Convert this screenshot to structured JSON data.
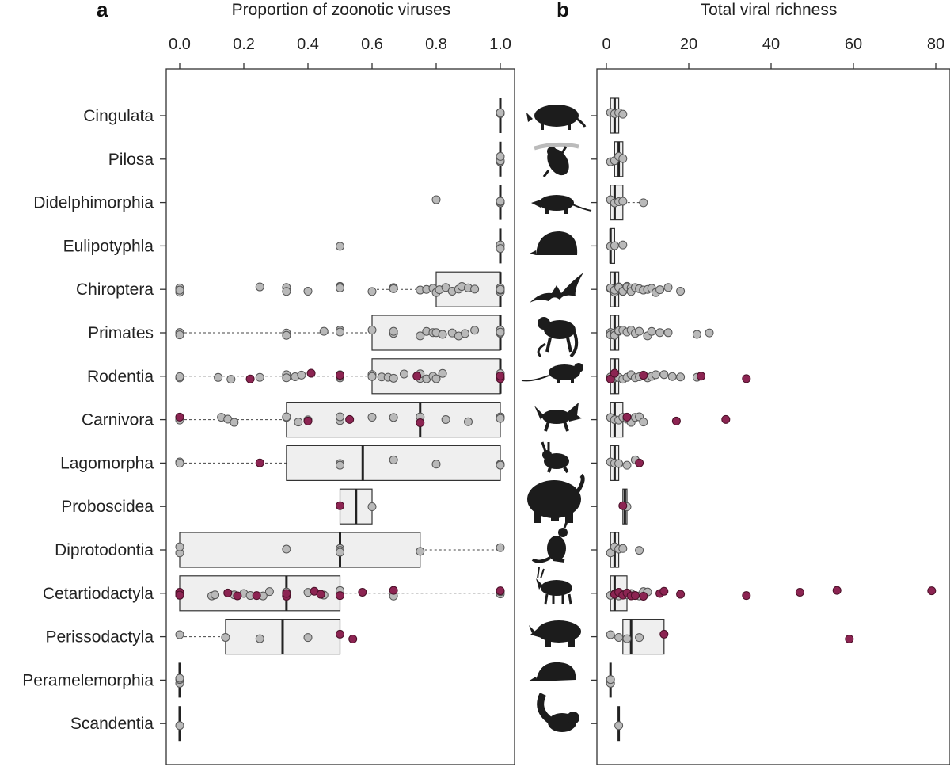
{
  "colors": {
    "point_grey": "#b9b9b9",
    "point_red": "#8c2452",
    "box_fill": "#efefef",
    "silhouette": "#1c1c1c"
  },
  "chart_data": [
    {
      "panel": "a",
      "type": "boxplot",
      "title": "Proportion of zoonotic viruses",
      "xlabel": "Proportion of zoonotic viruses",
      "xlim": [
        0,
        1
      ],
      "xticks": [
        0.0,
        0.2,
        0.4,
        0.6,
        0.8,
        1.0
      ],
      "xtick_labels": [
        "0.0",
        "0.2",
        "0.4",
        "0.6",
        "0.8",
        "1.0"
      ],
      "categories": [
        "Cingulata",
        "Pilosa",
        "Didelphimorphia",
        "Eulipotyphla",
        "Chiroptera",
        "Primates",
        "Rodentia",
        "Carnivora",
        "Lagomorpha",
        "Proboscidea",
        "Diprotodontia",
        "Cetartiodactyla",
        "Perissodactyla",
        "Peramelemorphia",
        "Scandentia"
      ],
      "boxes": [
        {
          "q1": 1.0,
          "median": 1.0,
          "q3": 1.0,
          "lo": 1.0,
          "hi": 1.0
        },
        {
          "q1": 1.0,
          "median": 1.0,
          "q3": 1.0,
          "lo": 1.0,
          "hi": 1.0
        },
        {
          "q1": 1.0,
          "median": 1.0,
          "q3": 1.0,
          "lo": 1.0,
          "hi": 1.0
        },
        {
          "q1": 1.0,
          "median": 1.0,
          "q3": 1.0,
          "lo": 1.0,
          "hi": 1.0
        },
        {
          "q1": 0.8,
          "median": 1.0,
          "q3": 1.0,
          "lo": 0.6,
          "hi": 1.0
        },
        {
          "q1": 0.6,
          "median": 1.0,
          "q3": 1.0,
          "lo": 0.0,
          "hi": 1.0
        },
        {
          "q1": 0.6,
          "median": 1.0,
          "q3": 1.0,
          "lo": 0.0,
          "hi": 1.0
        },
        {
          "q1": 0.333,
          "median": 0.75,
          "q3": 1.0,
          "lo": 0.0,
          "hi": 1.0
        },
        {
          "q1": 0.333,
          "median": 0.571,
          "q3": 1.0,
          "lo": 0.0,
          "hi": 1.0
        },
        {
          "q1": 0.5,
          "median": 0.55,
          "q3": 0.6,
          "lo": 0.5,
          "hi": 0.6
        },
        {
          "q1": 0.0,
          "median": 0.5,
          "q3": 0.75,
          "lo": 0.0,
          "hi": 1.0
        },
        {
          "q1": 0.0,
          "median": 0.333,
          "q3": 0.5,
          "lo": 0.0,
          "hi": 1.0
        },
        {
          "q1": 0.143,
          "median": 0.321,
          "q3": 0.5,
          "lo": 0.0,
          "hi": 0.5
        },
        {
          "q1": 0.0,
          "median": 0.0,
          "q3": 0.0,
          "lo": 0.0,
          "hi": 0.0
        },
        {
          "q1": 0.0,
          "median": 0.0,
          "q3": 0.0,
          "lo": 0.0,
          "hi": 0.0
        }
      ],
      "points_grey": [
        [
          1.0,
          1.0,
          1.0
        ],
        [
          1.0,
          1.0,
          1.0
        ],
        [
          0.8,
          1.0,
          1.0,
          1.0
        ],
        [
          0.5,
          1.0,
          1.0,
          1.0
        ],
        [
          0.0,
          0.0,
          0.0,
          0.0,
          0.25,
          0.333,
          0.333,
          0.4,
          0.5,
          0.5,
          0.5,
          0.6,
          0.667,
          0.667,
          0.75,
          0.77,
          0.79,
          0.8,
          0.81,
          0.83,
          0.85,
          0.87,
          0.88,
          0.9,
          0.92,
          1.0,
          1.0,
          1.0,
          1.0
        ],
        [
          0.0,
          0.0,
          0.333,
          0.333,
          0.45,
          0.5,
          0.5,
          0.5,
          0.6,
          0.667,
          0.667,
          0.75,
          0.77,
          0.79,
          0.8,
          0.82,
          0.85,
          0.87,
          0.89,
          0.92,
          1.0,
          1.0,
          1.0,
          1.0
        ],
        [
          0.0,
          0.0,
          0.0,
          0.12,
          0.16,
          0.25,
          0.333,
          0.333,
          0.36,
          0.38,
          0.5,
          0.5,
          0.5,
          0.6,
          0.6,
          0.63,
          0.65,
          0.667,
          0.7,
          0.75,
          0.75,
          0.77,
          0.79,
          0.8,
          0.82,
          1.0,
          1.0
        ],
        [
          0.0,
          0.0,
          0.0,
          0.13,
          0.15,
          0.17,
          0.333,
          0.333,
          0.37,
          0.4,
          0.5,
          0.5,
          0.5,
          0.6,
          0.667,
          0.75,
          0.83,
          0.9,
          1.0,
          1.0
        ],
        [
          0.0,
          0.0,
          0.5,
          0.5,
          0.667,
          0.8,
          1.0,
          1.0
        ],
        [
          0.6
        ],
        [
          0.0,
          0.0,
          0.333,
          0.5,
          0.5,
          0.5,
          0.75,
          1.0
        ],
        [
          0.0,
          0.0,
          0.1,
          0.11,
          0.17,
          0.2,
          0.22,
          0.26,
          0.28,
          0.333,
          0.333,
          0.4,
          0.45,
          0.5,
          0.667,
          1.0,
          1.0
        ],
        [
          0.0,
          0.143,
          0.25,
          0.4
        ],
        [
          0.0,
          0.0,
          0.0
        ],
        [
          0.0
        ]
      ],
      "points_red": [
        [],
        [],
        [],
        [],
        [],
        [],
        [
          0.22,
          0.41,
          0.5,
          0.74,
          1.0,
          1.0
        ],
        [
          0.0,
          0.4,
          0.53,
          0.75
        ],
        [
          0.25
        ],
        [
          0.5
        ],
        [],
        [
          0.0,
          0.0,
          0.0,
          0.15,
          0.18,
          0.24,
          0.333,
          0.333,
          0.42,
          0.44,
          0.5,
          0.57,
          0.667,
          1.0
        ],
        [
          0.5,
          0.54
        ],
        [],
        []
      ]
    },
    {
      "panel": "b",
      "type": "boxplot",
      "title": "Total viral richness",
      "xlabel": "Total viral richness",
      "xlim": [
        0,
        80
      ],
      "xticks": [
        0,
        20,
        40,
        60,
        80
      ],
      "xtick_labels": [
        "0",
        "20",
        "40",
        "60",
        "80"
      ],
      "categories": [
        "Cingulata",
        "Pilosa",
        "Didelphimorphia",
        "Eulipotyphla",
        "Chiroptera",
        "Primates",
        "Rodentia",
        "Carnivora",
        "Lagomorpha",
        "Proboscidea",
        "Diprotodontia",
        "Cetartiodactyla",
        "Perissodactyla",
        "Peramelemorphia",
        "Scandentia"
      ],
      "boxes": [
        {
          "q1": 1,
          "median": 2,
          "q3": 3,
          "lo": 1,
          "hi": 4
        },
        {
          "q1": 2,
          "median": 3,
          "q3": 4,
          "lo": 1,
          "hi": 4
        },
        {
          "q1": 1,
          "median": 2,
          "q3": 4,
          "lo": 1,
          "hi": 9
        },
        {
          "q1": 1,
          "median": 1,
          "q3": 2,
          "lo": 1,
          "hi": 2
        },
        {
          "q1": 1,
          "median": 2,
          "q3": 3,
          "lo": 1,
          "hi": 5
        },
        {
          "q1": 1,
          "median": 2,
          "q3": 3,
          "lo": 1,
          "hi": 5
        },
        {
          "q1": 1,
          "median": 2,
          "q3": 3,
          "lo": 1,
          "hi": 5
        },
        {
          "q1": 1,
          "median": 2,
          "q3": 4,
          "lo": 1,
          "hi": 6
        },
        {
          "q1": 1,
          "median": 2,
          "q3": 3,
          "lo": 1,
          "hi": 5
        },
        {
          "q1": 4,
          "median": 4.5,
          "q3": 5,
          "lo": 4,
          "hi": 5
        },
        {
          "q1": 1,
          "median": 2,
          "q3": 3,
          "lo": 1,
          "hi": 4
        },
        {
          "q1": 1,
          "median": 2,
          "q3": 5,
          "lo": 1,
          "hi": 9
        },
        {
          "q1": 4,
          "median": 6,
          "q3": 14,
          "lo": 1,
          "hi": 14
        },
        {
          "q1": 1,
          "median": 1,
          "q3": 1,
          "lo": 1,
          "hi": 1
        },
        {
          "q1": 3,
          "median": 3,
          "q3": 3,
          "lo": 3,
          "hi": 3
        }
      ],
      "points_grey": [
        [
          1,
          2,
          3,
          4
        ],
        [
          1,
          2,
          3,
          4
        ],
        [
          1,
          2,
          3,
          4,
          9
        ],
        [
          1,
          2,
          4
        ],
        [
          1,
          1,
          2,
          2,
          3,
          3,
          4,
          4,
          5,
          5,
          6,
          6,
          7,
          8,
          9,
          10,
          11,
          12,
          13,
          15,
          18
        ],
        [
          1,
          1,
          2,
          2,
          3,
          3,
          4,
          5,
          6,
          7,
          8,
          10,
          11,
          13,
          15,
          22,
          25
        ],
        [
          1,
          2,
          2,
          3,
          4,
          5,
          6,
          7,
          8,
          9,
          10,
          11,
          12,
          14,
          16,
          18,
          22
        ],
        [
          1,
          2,
          3,
          4,
          5,
          6,
          7,
          8,
          9
        ],
        [
          1,
          2,
          3,
          5,
          7
        ],
        [
          5
        ],
        [
          1,
          2,
          3,
          4,
          8
        ],
        [
          1,
          2,
          3,
          4,
          5,
          6,
          7,
          8,
          9,
          10
        ],
        [
          1,
          3,
          5,
          8
        ],
        [
          1,
          1
        ],
        [
          3
        ]
      ],
      "points_red": [
        [],
        [],
        [],
        [],
        [],
        [],
        [
          1,
          2,
          9,
          23,
          34
        ],
        [
          5,
          17,
          29
        ],
        [
          8
        ],
        [
          4
        ],
        [],
        [
          2,
          3,
          4,
          5,
          6,
          7,
          9,
          13,
          14,
          18,
          34,
          47,
          56,
          79
        ],
        [
          14,
          59
        ],
        [],
        []
      ]
    }
  ]
}
